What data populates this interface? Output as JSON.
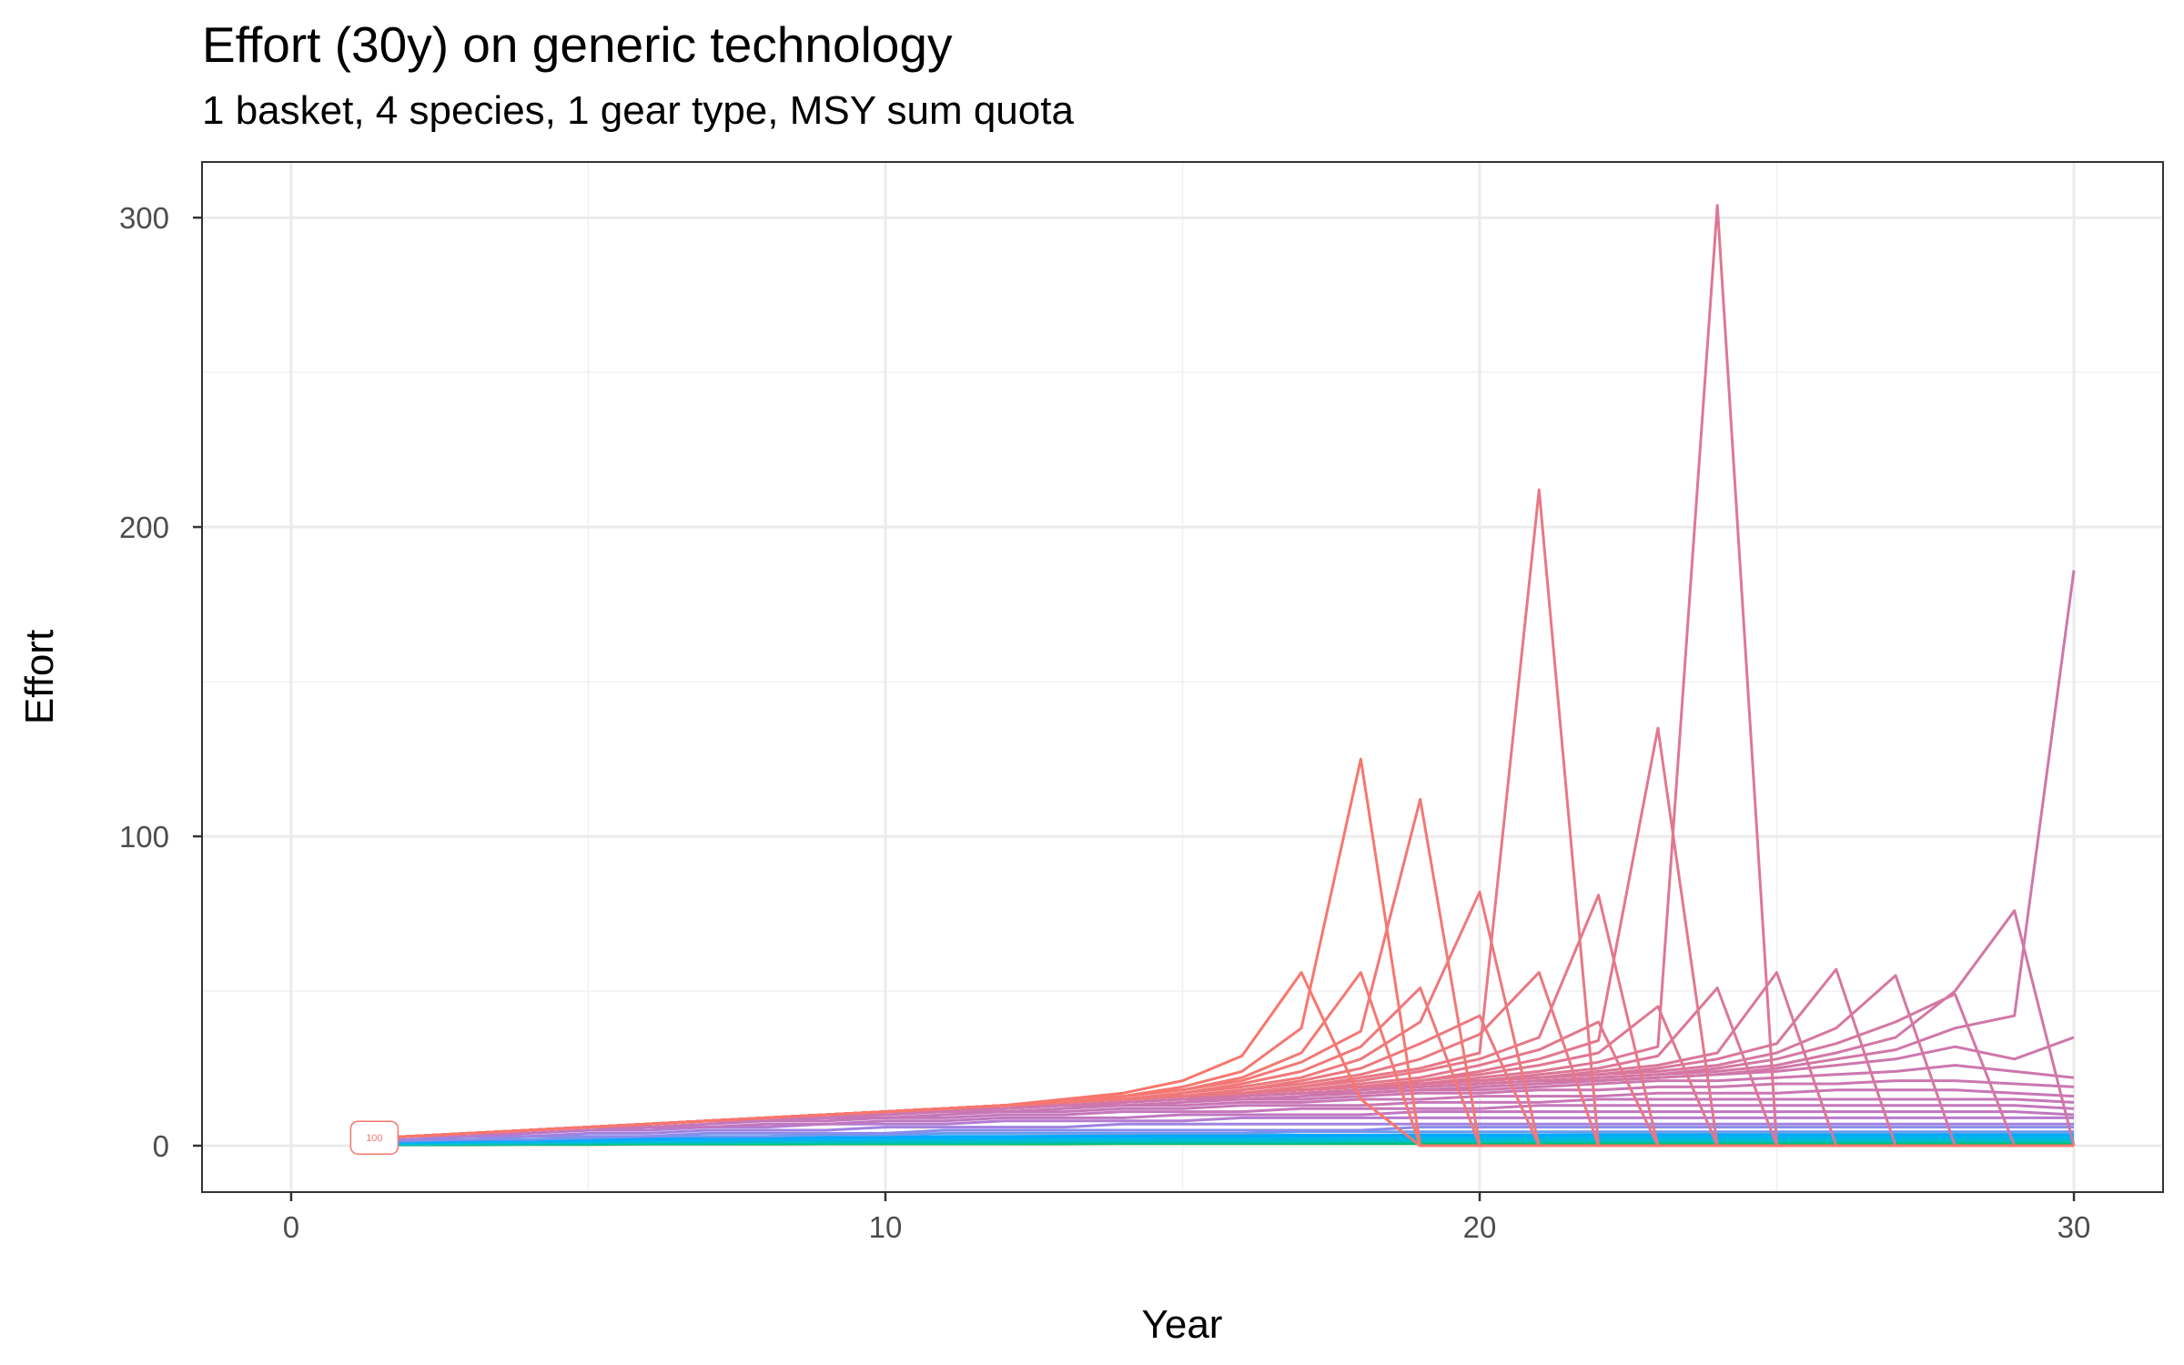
{
  "chart_data": {
    "type": "line",
    "title": "Effort (30y) on generic technology",
    "subtitle": "1 basket, 4 species, 1 gear type, MSY sum quota",
    "xlabel": "Year",
    "ylabel": "Effort",
    "xlim": [
      -1.5,
      31.5
    ],
    "ylim": [
      -15,
      318
    ],
    "x_ticks": [
      0,
      10,
      20,
      30
    ],
    "x_tick_labels": [
      "0",
      "10",
      "20",
      "30"
    ],
    "y_ticks": [
      0,
      100,
      200,
      300
    ],
    "y_tick_labels": [
      "0",
      "100",
      "200",
      "300"
    ],
    "grid": true,
    "legend": "none",
    "annotations": [
      {
        "text": "100",
        "x": 1.4,
        "y": 2,
        "color": "#F8766D"
      }
    ],
    "x": [
      1,
      2,
      3,
      4,
      5,
      6,
      7,
      8,
      9,
      10,
      11,
      12,
      13,
      14,
      15,
      16,
      17,
      18,
      19,
      20,
      21,
      22,
      23,
      24,
      25,
      26,
      27,
      28,
      29,
      30
    ],
    "series": [
      {
        "color": "#F8766D",
        "values": [
          2,
          3,
          4,
          5,
          6,
          7,
          8,
          9,
          10,
          11,
          12,
          13,
          15,
          17,
          21,
          29,
          56,
          15,
          0,
          0,
          0,
          0,
          0,
          0,
          0,
          0,
          0,
          0,
          0,
          0
        ]
      },
      {
        "color": "#F6776F",
        "values": [
          2,
          3,
          4,
          5,
          6,
          7,
          8,
          9,
          10,
          11,
          12,
          13,
          15,
          16,
          19,
          24,
          38,
          125,
          0,
          0,
          0,
          0,
          0,
          0,
          0,
          0,
          0,
          0,
          0,
          0
        ]
      },
      {
        "color": "#F47872",
        "values": [
          2,
          3,
          4,
          5,
          6,
          7,
          8,
          9,
          10,
          11,
          12,
          13,
          14,
          16,
          18,
          22,
          30,
          56,
          0,
          0,
          0,
          0,
          0,
          0,
          0,
          0,
          0,
          0,
          0,
          0
        ]
      },
      {
        "color": "#F27875",
        "values": [
          2,
          3,
          4,
          5,
          6,
          7,
          8,
          9,
          10,
          11,
          12,
          13,
          14,
          16,
          18,
          21,
          27,
          37,
          112,
          0,
          0,
          0,
          0,
          0,
          0,
          0,
          0,
          0,
          0,
          0
        ]
      },
      {
        "color": "#F07879",
        "values": [
          2,
          3,
          4,
          5,
          6,
          7,
          8,
          9,
          10,
          11,
          12,
          13,
          14,
          15,
          17,
          20,
          24,
          32,
          51,
          0,
          0,
          0,
          0,
          0,
          0,
          0,
          0,
          0,
          0,
          0
        ]
      },
      {
        "color": "#EE787C",
        "values": [
          2,
          3,
          4,
          5,
          6,
          7,
          8,
          9,
          10,
          11,
          12,
          13,
          14,
          15,
          17,
          19,
          22,
          28,
          40,
          82,
          0,
          0,
          0,
          0,
          0,
          0,
          0,
          0,
          0,
          0
        ]
      },
      {
        "color": "#EC787F",
        "values": [
          2,
          3,
          4,
          5,
          6,
          7,
          8,
          9,
          10,
          11,
          12,
          13,
          14,
          15,
          16,
          18,
          21,
          25,
          33,
          42,
          0,
          0,
          0,
          0,
          0,
          0,
          0,
          0,
          0,
          0
        ]
      },
      {
        "color": "#EA7882",
        "values": [
          2,
          3,
          4,
          5,
          6,
          7,
          8,
          9,
          10,
          11,
          12,
          13,
          14,
          15,
          16,
          18,
          20,
          23,
          28,
          36,
          56,
          0,
          0,
          0,
          0,
          0,
          0,
          0,
          0,
          0
        ]
      },
      {
        "color": "#E87885",
        "values": [
          2,
          3,
          4,
          5,
          6,
          7,
          8,
          9,
          10,
          11,
          12,
          13,
          14,
          15,
          16,
          17,
          19,
          22,
          25,
          30,
          212,
          0,
          0,
          0,
          0,
          0,
          0,
          0,
          0,
          0
        ]
      },
      {
        "color": "#E67888",
        "values": [
          2,
          3,
          4,
          5,
          6,
          7,
          8,
          9,
          10,
          11,
          12,
          13,
          14,
          15,
          16,
          17,
          19,
          21,
          24,
          28,
          35,
          81,
          0,
          0,
          0,
          0,
          0,
          0,
          0,
          0
        ]
      },
      {
        "color": "#E4778B",
        "values": [
          2,
          3,
          4,
          5,
          6,
          7,
          8,
          9,
          10,
          11,
          12,
          13,
          14,
          15,
          16,
          17,
          18,
          20,
          22,
          26,
          31,
          40,
          0,
          0,
          0,
          0,
          0,
          0,
          0,
          0
        ]
      },
      {
        "color": "#E2778E",
        "values": [
          2,
          3,
          4,
          5,
          6,
          7,
          8,
          9,
          10,
          11,
          12,
          13,
          14,
          15,
          16,
          17,
          18,
          19,
          21,
          24,
          28,
          34,
          135,
          0,
          0,
          0,
          0,
          0,
          0,
          0
        ]
      },
      {
        "color": "#E07791",
        "values": [
          2,
          3,
          4,
          5,
          6,
          7,
          8,
          9,
          10,
          11,
          12,
          13,
          14,
          15,
          16,
          17,
          18,
          19,
          21,
          23,
          26,
          30,
          45,
          0,
          0,
          0,
          0,
          0,
          0,
          0
        ]
      },
      {
        "color": "#DE7794",
        "values": [
          2,
          3,
          4,
          5,
          6,
          7,
          8,
          9,
          10,
          11,
          12,
          13,
          14,
          15,
          16,
          17,
          18,
          19,
          20,
          22,
          24,
          27,
          32,
          304,
          0,
          0,
          0,
          0,
          0,
          0
        ]
      },
      {
        "color": "#DC7797",
        "values": [
          2,
          3,
          4,
          5,
          6,
          7,
          8,
          9,
          10,
          11,
          12,
          13,
          14,
          15,
          16,
          17,
          18,
          19,
          20,
          21,
          23,
          25,
          29,
          51,
          0,
          0,
          0,
          0,
          0,
          0
        ]
      },
      {
        "color": "#DA779A",
        "values": [
          2,
          3,
          4,
          5,
          6,
          7,
          8,
          9,
          10,
          11,
          12,
          13,
          14,
          15,
          16,
          17,
          18,
          19,
          20,
          21,
          22,
          24,
          26,
          30,
          56,
          0,
          0,
          0,
          0,
          0
        ]
      },
      {
        "color": "#D8779D",
        "values": [
          2,
          3,
          4,
          5,
          6,
          7,
          8,
          9,
          10,
          11,
          12,
          13,
          14,
          15,
          16,
          17,
          18,
          19,
          20,
          21,
          22,
          23,
          25,
          28,
          33,
          57,
          0,
          0,
          0,
          0
        ]
      },
      {
        "color": "#D677A0",
        "values": [
          2,
          3,
          4,
          5,
          6,
          7,
          8,
          9,
          10,
          11,
          12,
          13,
          14,
          15,
          16,
          17,
          18,
          19,
          20,
          21,
          22,
          23,
          24,
          26,
          30,
          38,
          55,
          0,
          0,
          0
        ]
      },
      {
        "color": "#D477A3",
        "values": [
          2,
          3,
          4,
          5,
          6,
          7,
          8,
          9,
          10,
          11,
          12,
          13,
          14,
          15,
          16,
          17,
          18,
          19,
          19,
          20,
          21,
          22,
          23,
          25,
          28,
          33,
          40,
          49,
          0,
          0
        ]
      },
      {
        "color": "#D277A6",
        "values": [
          2,
          3,
          4,
          5,
          6,
          7,
          8,
          9,
          10,
          11,
          12,
          13,
          14,
          15,
          16,
          16,
          17,
          18,
          19,
          20,
          21,
          22,
          23,
          24,
          26,
          30,
          35,
          50,
          76,
          0
        ]
      },
      {
        "color": "#D077A9",
        "values": [
          2,
          3,
          4,
          5,
          6,
          7,
          8,
          9,
          10,
          11,
          12,
          13,
          13,
          14,
          15,
          16,
          17,
          18,
          19,
          20,
          21,
          21,
          22,
          23,
          25,
          28,
          31,
          38,
          42,
          186
        ]
      },
      {
        "color": "#CE77AC",
        "values": [
          2,
          3,
          4,
          5,
          6,
          7,
          8,
          9,
          10,
          11,
          12,
          12,
          13,
          14,
          15,
          16,
          17,
          17,
          18,
          19,
          20,
          21,
          22,
          23,
          24,
          26,
          28,
          32,
          28,
          35
        ]
      },
      {
        "color": "#CC77AF",
        "values": [
          2,
          3,
          4,
          5,
          6,
          7,
          8,
          9,
          10,
          11,
          11,
          12,
          13,
          14,
          15,
          15,
          16,
          17,
          18,
          18,
          19,
          20,
          21,
          21,
          22,
          23,
          24,
          26,
          24,
          22
        ]
      },
      {
        "color": "#CA77B2",
        "values": [
          2,
          3,
          4,
          5,
          6,
          7,
          8,
          9,
          10,
          10,
          11,
          12,
          13,
          13,
          14,
          15,
          15,
          16,
          17,
          17,
          18,
          18,
          19,
          19,
          20,
          20,
          21,
          21,
          20,
          19
        ]
      },
      {
        "color": "#C877B5",
        "values": [
          2,
          3,
          4,
          5,
          6,
          7,
          8,
          9,
          9,
          10,
          11,
          11,
          12,
          13,
          13,
          14,
          14,
          15,
          15,
          16,
          16,
          16,
          17,
          17,
          17,
          18,
          18,
          18,
          17,
          16
        ]
      },
      {
        "color": "#C677B8",
        "values": [
          2,
          3,
          4,
          5,
          6,
          7,
          8,
          8,
          9,
          9,
          10,
          11,
          11,
          12,
          12,
          13,
          13,
          13,
          14,
          14,
          14,
          15,
          15,
          15,
          15,
          15,
          15,
          15,
          15,
          14
        ]
      },
      {
        "color": "#C477BB",
        "values": [
          2,
          3,
          4,
          5,
          6,
          6,
          7,
          8,
          8,
          9,
          9,
          10,
          10,
          11,
          11,
          11,
          12,
          12,
          12,
          12,
          13,
          13,
          13,
          13,
          13,
          13,
          13,
          13,
          13,
          12
        ]
      },
      {
        "color": "#C077C0",
        "values": [
          2,
          3,
          4,
          4,
          5,
          6,
          6,
          7,
          7,
          8,
          8,
          9,
          9,
          9,
          10,
          10,
          10,
          10,
          11,
          11,
          11,
          11,
          11,
          11,
          11,
          11,
          11,
          11,
          11,
          10
        ]
      },
      {
        "color": "#B47BD0",
        "values": [
          2,
          3,
          3,
          4,
          5,
          5,
          6,
          6,
          7,
          7,
          7,
          8,
          8,
          8,
          8,
          9,
          9,
          9,
          9,
          9,
          9,
          9,
          9,
          9,
          9,
          9,
          9,
          9,
          9,
          9
        ]
      },
      {
        "color": "#A082E0",
        "values": [
          1.5,
          2,
          3,
          3,
          4,
          4,
          5,
          5,
          5,
          6,
          6,
          6,
          6,
          7,
          7,
          7,
          7,
          7,
          7,
          7,
          7,
          7,
          7,
          7,
          7,
          7,
          7,
          7,
          7,
          7
        ]
      },
      {
        "color": "#8A8DEA",
        "values": [
          1.5,
          2,
          2,
          3,
          3,
          3,
          4,
          4,
          4,
          4,
          5,
          5,
          5,
          5,
          5,
          5,
          5,
          5,
          6,
          6,
          6,
          6,
          6,
          6,
          6,
          6,
          6,
          6,
          6,
          6
        ]
      },
      {
        "color": "#6B9BEE",
        "values": [
          1.2,
          1.5,
          2,
          2,
          2.5,
          3,
          3,
          3,
          3.5,
          3.5,
          4,
          4,
          4,
          4,
          4,
          4,
          4.5,
          4.5,
          4.5,
          4.5,
          4.5,
          4.5,
          4.5,
          4.5,
          4.5,
          4.5,
          4.5,
          4.5,
          4.5,
          4.5
        ]
      },
      {
        "color": "#00A9FF",
        "values": [
          1,
          1.2,
          1.5,
          1.7,
          2,
          2.2,
          2.4,
          2.5,
          2.7,
          2.8,
          3,
          3,
          3.1,
          3.2,
          3.3,
          3.3,
          3.4,
          3.4,
          3.5,
          3.5,
          3.5,
          3.6,
          3.6,
          3.6,
          3.6,
          3.6,
          3.6,
          3.6,
          3.6,
          3.6
        ]
      },
      {
        "color": "#00B4EF",
        "values": [
          0.8,
          1,
          1.2,
          1.4,
          1.6,
          1.8,
          1.9,
          2,
          2.1,
          2.2,
          2.3,
          2.4,
          2.5,
          2.5,
          2.6,
          2.6,
          2.7,
          2.7,
          2.7,
          2.8,
          2.8,
          2.8,
          2.8,
          2.8,
          2.8,
          2.8,
          2.8,
          2.8,
          2.8,
          2.8
        ]
      },
      {
        "color": "#00BBDA",
        "values": [
          0.6,
          0.8,
          1,
          1.1,
          1.3,
          1.4,
          1.5,
          1.6,
          1.7,
          1.8,
          1.8,
          1.9,
          1.9,
          2,
          2,
          2,
          2.1,
          2.1,
          2.1,
          2.1,
          2.1,
          2.2,
          2.2,
          2.2,
          2.2,
          2.2,
          2.2,
          2.2,
          2.2,
          2.2
        ]
      },
      {
        "color": "#00BFC4",
        "values": [
          0.5,
          0.6,
          0.8,
          0.9,
          1,
          1.1,
          1.2,
          1.3,
          1.3,
          1.4,
          1.4,
          1.5,
          1.5,
          1.5,
          1.6,
          1.6,
          1.6,
          1.6,
          1.6,
          1.6,
          1.7,
          1.7,
          1.7,
          1.7,
          1.7,
          1.7,
          1.7,
          1.7,
          1.7,
          1.7
        ]
      },
      {
        "color": "#00C0AF",
        "values": [
          0.3,
          0.4,
          0.5,
          0.6,
          0.7,
          0.8,
          0.8,
          0.9,
          0.9,
          1,
          1,
          1,
          1.1,
          1.1,
          1.1,
          1.1,
          1.1,
          1.2,
          1.2,
          1.2,
          1.2,
          1.2,
          1.2,
          1.2,
          1.2,
          1.2,
          1.2,
          1.2,
          1.2,
          1.2
        ]
      },
      {
        "color": "#00BD5C",
        "values": [
          0.2,
          0.3,
          0.3,
          0.4,
          0.4,
          0.5,
          0.5,
          0.5,
          0.6,
          0.6,
          0.6,
          0.6,
          0.6,
          0.7,
          0.7,
          0.7,
          0.7,
          0.7,
          0.7,
          0.7,
          0.7,
          0.7,
          0.7,
          0.7,
          0.7,
          0.7,
          0.7,
          0.7,
          0.7,
          0.7
        ]
      }
    ]
  }
}
